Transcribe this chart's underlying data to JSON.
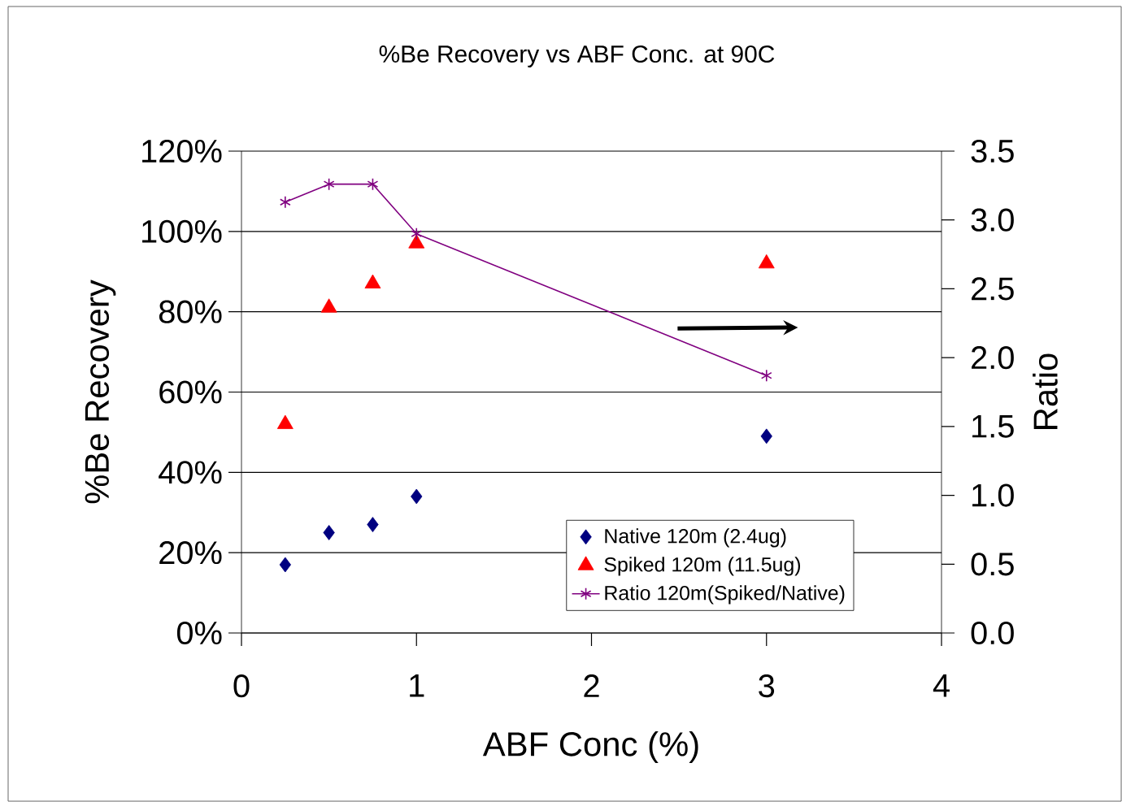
{
  "chart_data": {
    "type": "scatter",
    "title": "%Be Recovery vs ABF Conc. at 90C",
    "xlabel": "ABF Conc (%)",
    "ylabel": "%Be Recovery",
    "y2label": "Ratio",
    "x": [
      0.25,
      0.5,
      0.75,
      1,
      3
    ],
    "series": [
      {
        "name": "Native 120m (2.4ug)",
        "color": "#000080",
        "marker": "diamond",
        "values": [
          17,
          25,
          27,
          34,
          49
        ]
      },
      {
        "name": "Spiked 120m (11.5ug)",
        "color": "#ff0000",
        "marker": "triangle",
        "values": [
          52,
          81,
          87,
          97,
          92
        ]
      },
      {
        "name": "Ratio 120m(Spiked/Native)",
        "type": "line",
        "axis": "y2",
        "color": "#800080",
        "marker": "cross",
        "values": [
          3.13,
          3.26,
          3.26,
          2.9,
          1.87
        ]
      }
    ],
    "xlim": [
      0,
      4
    ],
    "xticks": [
      0,
      1,
      2,
      3,
      4
    ],
    "ylim": [
      0,
      120
    ],
    "yticks": [
      {
        "value": 0,
        "label": "0%"
      },
      {
        "value": 20,
        "label": "20%"
      },
      {
        "value": 40,
        "label": "40%"
      },
      {
        "value": 60,
        "label": "60%"
      },
      {
        "value": 80,
        "label": "80%"
      },
      {
        "value": 100,
        "label": "100%"
      },
      {
        "value": 120,
        "label": "120%"
      }
    ],
    "y2lim": [
      0,
      3.5
    ],
    "y2ticks": [
      {
        "value": 0,
        "label": "0.0"
      },
      {
        "value": 0.5,
        "label": "0.5"
      },
      {
        "value": 1,
        "label": "1.0"
      },
      {
        "value": 1.5,
        "label": "1.5"
      },
      {
        "value": 2,
        "label": "2.0"
      },
      {
        "value": 2.5,
        "label": "2.5"
      },
      {
        "value": 3,
        "label": "3.0"
      },
      {
        "value": 3.5,
        "label": "3.5"
      }
    ],
    "grid": "y",
    "legend": "bottom right"
  }
}
